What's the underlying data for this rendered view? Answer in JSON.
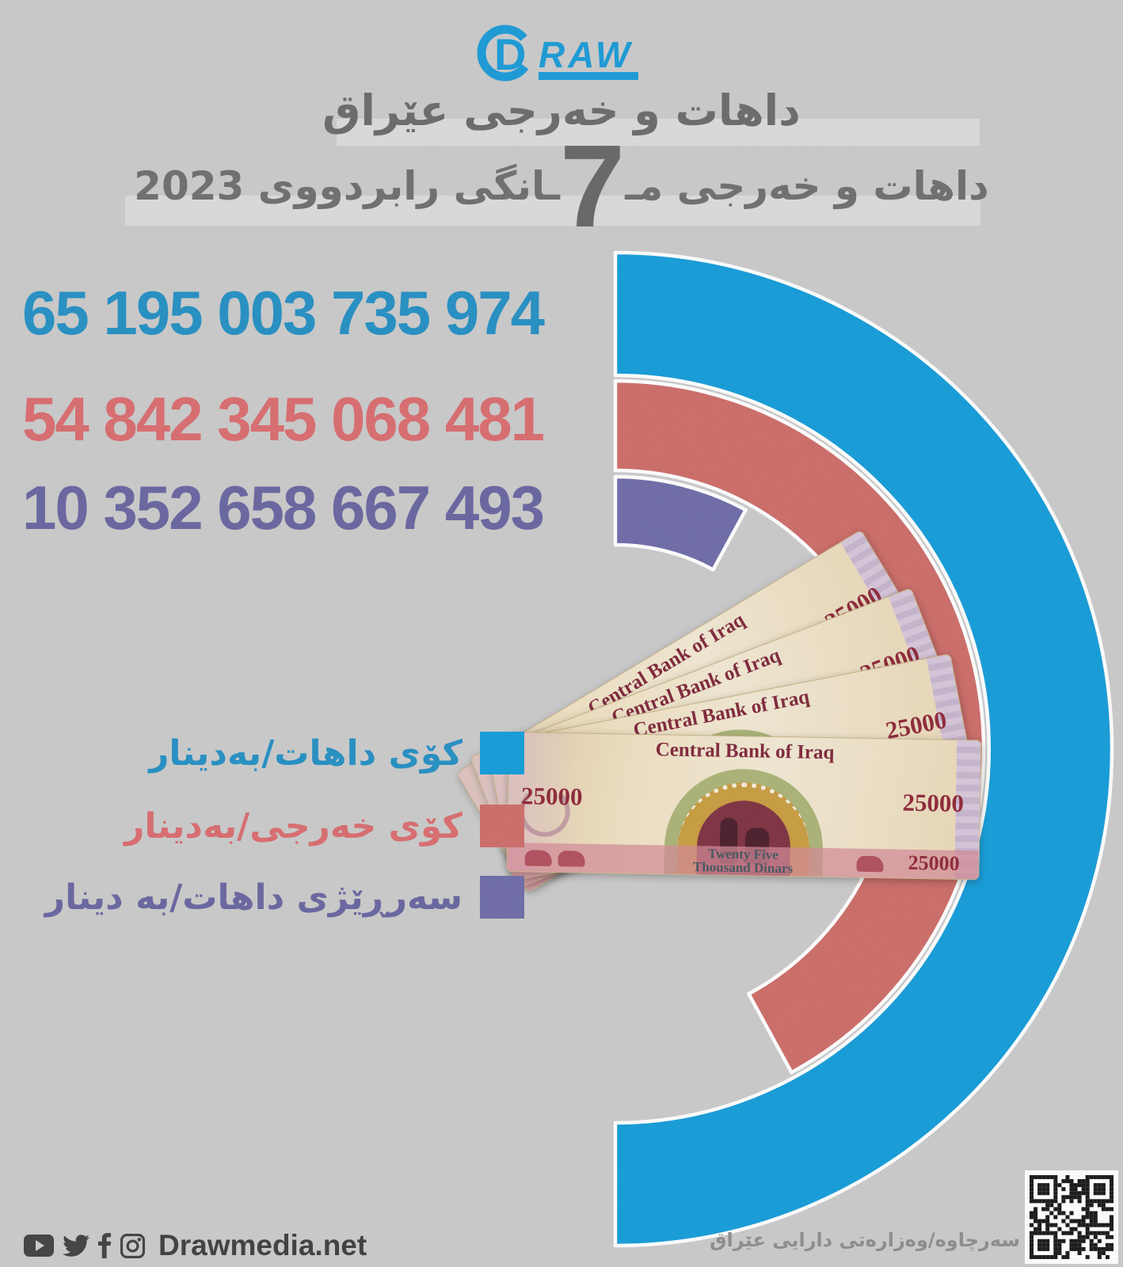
{
  "header": {
    "title": "داهات و خەرجی عێراق",
    "subtitle_pre": "داهات و خەرجی مـ",
    "subtitle_big_number": "7",
    "subtitle_post": "ـانگی رابردووی 2023"
  },
  "logo": {
    "d": "D",
    "raw": "RAW",
    "color": "#1598d6"
  },
  "chart_data": {
    "type": "radial-bar",
    "title": "داهات و خەرجی عێراق",
    "subtitle": "داهات و خەرجی 7 مانگی رابردووی 2023",
    "unit": "Iraqi dinar (IQD)",
    "max_angle_deg": 180,
    "legend_position": "middle-left",
    "series": [
      {
        "label": "کۆی داهات/بەدینار",
        "value": 65195003735974,
        "display": "65 195 003 735 974",
        "color": "#0f9ad8",
        "number_color": "#1f8dc2"
      },
      {
        "label": "کۆی خەرجی/بەدینار",
        "value": 54842345068481,
        "display": "54 842 345 068 481",
        "color": "#cc6965",
        "number_color": "#d9696c"
      },
      {
        "label": "سەرڕێژی داهات/بە دینار",
        "value": 10352658667493,
        "display": "10 352 658 667 493",
        "color": "#6b68a6",
        "number_color": "#65629e"
      }
    ]
  },
  "banknote": {
    "issuer": "Central Bank of Iraq",
    "denomination": "25000",
    "words_line1": "Twenty Five",
    "words_line2": "Thousand Dinars"
  },
  "footer": {
    "site": "Drawmedia.net",
    "source": "سەرچاوە/وەزارەتی دارایی عێراق"
  }
}
